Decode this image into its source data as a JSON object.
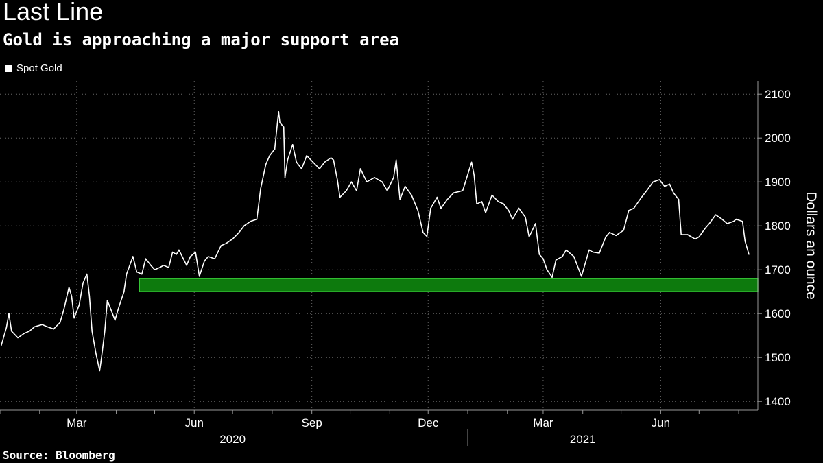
{
  "header": {
    "title": "Last Line",
    "subtitle": "Gold is approaching a major support area"
  },
  "legend": {
    "label": "Spot Gold",
    "swatch_color": "#ffffff"
  },
  "footer": {
    "source": "Source: Bloomberg"
  },
  "chart_data": {
    "type": "line",
    "title": "Last Line",
    "subtitle": "Gold is approaching a major support area",
    "ylabel": "Dollars an ounce",
    "ylim": [
      1380,
      2130
    ],
    "yticks": [
      1400,
      1500,
      1600,
      1700,
      1800,
      1900,
      2000,
      2100
    ],
    "xlim": [
      "2020-01-01",
      "2021-08-16"
    ],
    "x_tick_labels": [
      {
        "label": "Mar",
        "date": "2020-03-01"
      },
      {
        "label": "Jun",
        "date": "2020-06-01"
      },
      {
        "label": "Sep",
        "date": "2020-09-01"
      },
      {
        "label": "Dec",
        "date": "2020-12-01"
      },
      {
        "label": "Mar",
        "date": "2021-03-01"
      },
      {
        "label": "Jun",
        "date": "2021-06-01"
      }
    ],
    "year_labels": [
      {
        "label": "2020",
        "date": "2020-07-01"
      },
      {
        "label": "2021",
        "date": "2021-04-01"
      }
    ],
    "grid": true,
    "legend_position": "top-left",
    "series_color": "#ffffff",
    "series": [
      {
        "name": "Spot Gold",
        "points": [
          [
            "2020-01-02",
            1528
          ],
          [
            "2020-01-06",
            1568
          ],
          [
            "2020-01-08",
            1600
          ],
          [
            "2020-01-10",
            1560
          ],
          [
            "2020-01-15",
            1545
          ],
          [
            "2020-01-20",
            1555
          ],
          [
            "2020-01-24",
            1560
          ],
          [
            "2020-01-28",
            1570
          ],
          [
            "2020-02-03",
            1575
          ],
          [
            "2020-02-07",
            1570
          ],
          [
            "2020-02-12",
            1565
          ],
          [
            "2020-02-17",
            1580
          ],
          [
            "2020-02-20",
            1610
          ],
          [
            "2020-02-24",
            1660
          ],
          [
            "2020-02-26",
            1640
          ],
          [
            "2020-02-28",
            1590
          ],
          [
            "2020-03-03",
            1620
          ],
          [
            "2020-03-06",
            1670
          ],
          [
            "2020-03-09",
            1690
          ],
          [
            "2020-03-11",
            1640
          ],
          [
            "2020-03-13",
            1560
          ],
          [
            "2020-03-16",
            1510
          ],
          [
            "2020-03-19",
            1470
          ],
          [
            "2020-03-20",
            1490
          ],
          [
            "2020-03-23",
            1560
          ],
          [
            "2020-03-25",
            1630
          ],
          [
            "2020-03-27",
            1615
          ],
          [
            "2020-03-31",
            1585
          ],
          [
            "2020-04-03",
            1615
          ],
          [
            "2020-04-07",
            1650
          ],
          [
            "2020-04-09",
            1690
          ],
          [
            "2020-04-14",
            1730
          ],
          [
            "2020-04-17",
            1695
          ],
          [
            "2020-04-21",
            1690
          ],
          [
            "2020-04-24",
            1725
          ],
          [
            "2020-04-28",
            1710
          ],
          [
            "2020-05-01",
            1700
          ],
          [
            "2020-05-05",
            1705
          ],
          [
            "2020-05-08",
            1710
          ],
          [
            "2020-05-12",
            1705
          ],
          [
            "2020-05-15",
            1740
          ],
          [
            "2020-05-18",
            1735
          ],
          [
            "2020-05-20",
            1745
          ],
          [
            "2020-05-26",
            1710
          ],
          [
            "2020-05-29",
            1730
          ],
          [
            "2020-06-02",
            1740
          ],
          [
            "2020-06-05",
            1685
          ],
          [
            "2020-06-09",
            1720
          ],
          [
            "2020-06-12",
            1730
          ],
          [
            "2020-06-17",
            1725
          ],
          [
            "2020-06-22",
            1755
          ],
          [
            "2020-06-26",
            1760
          ],
          [
            "2020-07-01",
            1770
          ],
          [
            "2020-07-06",
            1785
          ],
          [
            "2020-07-10",
            1800
          ],
          [
            "2020-07-15",
            1810
          ],
          [
            "2020-07-20",
            1815
          ],
          [
            "2020-07-23",
            1885
          ],
          [
            "2020-07-27",
            1940
          ],
          [
            "2020-07-30",
            1960
          ],
          [
            "2020-08-03",
            1975
          ],
          [
            "2020-08-06",
            2060
          ],
          [
            "2020-08-07",
            2035
          ],
          [
            "2020-08-10",
            2025
          ],
          [
            "2020-08-11",
            1910
          ],
          [
            "2020-08-13",
            1950
          ],
          [
            "2020-08-17",
            1985
          ],
          [
            "2020-08-20",
            1945
          ],
          [
            "2020-08-24",
            1930
          ],
          [
            "2020-08-28",
            1960
          ],
          [
            "2020-09-02",
            1945
          ],
          [
            "2020-09-07",
            1930
          ],
          [
            "2020-09-11",
            1945
          ],
          [
            "2020-09-16",
            1955
          ],
          [
            "2020-09-18",
            1950
          ],
          [
            "2020-09-21",
            1905
          ],
          [
            "2020-09-23",
            1865
          ],
          [
            "2020-09-28",
            1880
          ],
          [
            "2020-10-02",
            1900
          ],
          [
            "2020-10-06",
            1880
          ],
          [
            "2020-10-09",
            1930
          ],
          [
            "2020-10-14",
            1900
          ],
          [
            "2020-10-20",
            1910
          ],
          [
            "2020-10-26",
            1900
          ],
          [
            "2020-10-30",
            1880
          ],
          [
            "2020-11-04",
            1910
          ],
          [
            "2020-11-06",
            1950
          ],
          [
            "2020-11-09",
            1860
          ],
          [
            "2020-11-13",
            1890
          ],
          [
            "2020-11-18",
            1870
          ],
          [
            "2020-11-23",
            1835
          ],
          [
            "2020-11-27",
            1785
          ],
          [
            "2020-11-30",
            1776
          ],
          [
            "2020-12-03",
            1840
          ],
          [
            "2020-12-08",
            1865
          ],
          [
            "2020-12-11",
            1840
          ],
          [
            "2020-12-16",
            1860
          ],
          [
            "2020-12-21",
            1875
          ],
          [
            "2020-12-28",
            1880
          ],
          [
            "2021-01-04",
            1945
          ],
          [
            "2021-01-06",
            1915
          ],
          [
            "2021-01-08",
            1850
          ],
          [
            "2021-01-12",
            1855
          ],
          [
            "2021-01-15",
            1830
          ],
          [
            "2021-01-20",
            1870
          ],
          [
            "2021-01-25",
            1855
          ],
          [
            "2021-01-29",
            1850
          ],
          [
            "2021-02-02",
            1835
          ],
          [
            "2021-02-05",
            1815
          ],
          [
            "2021-02-10",
            1840
          ],
          [
            "2021-02-15",
            1820
          ],
          [
            "2021-02-18",
            1775
          ],
          [
            "2021-02-23",
            1805
          ],
          [
            "2021-02-26",
            1735
          ],
          [
            "2021-03-01",
            1725
          ],
          [
            "2021-03-04",
            1700
          ],
          [
            "2021-03-08",
            1683
          ],
          [
            "2021-03-11",
            1722
          ],
          [
            "2021-03-16",
            1730
          ],
          [
            "2021-03-19",
            1745
          ],
          [
            "2021-03-25",
            1730
          ],
          [
            "2021-03-31",
            1685
          ],
          [
            "2021-04-06",
            1745
          ],
          [
            "2021-04-09",
            1740
          ],
          [
            "2021-04-14",
            1738
          ],
          [
            "2021-04-19",
            1775
          ],
          [
            "2021-04-22",
            1785
          ],
          [
            "2021-04-27",
            1778
          ],
          [
            "2021-05-03",
            1790
          ],
          [
            "2021-05-07",
            1835
          ],
          [
            "2021-05-11",
            1840
          ],
          [
            "2021-05-17",
            1865
          ],
          [
            "2021-05-21",
            1880
          ],
          [
            "2021-05-26",
            1900
          ],
          [
            "2021-05-31",
            1905
          ],
          [
            "2021-06-04",
            1890
          ],
          [
            "2021-06-08",
            1895
          ],
          [
            "2021-06-11",
            1875
          ],
          [
            "2021-06-15",
            1860
          ],
          [
            "2021-06-17",
            1780
          ],
          [
            "2021-06-22",
            1780
          ],
          [
            "2021-06-28",
            1770
          ],
          [
            "2021-07-01",
            1775
          ],
          [
            "2021-07-06",
            1795
          ],
          [
            "2021-07-09",
            1805
          ],
          [
            "2021-07-14",
            1825
          ],
          [
            "2021-07-19",
            1815
          ],
          [
            "2021-07-23",
            1805
          ],
          [
            "2021-07-28",
            1810
          ],
          [
            "2021-07-30",
            1815
          ],
          [
            "2021-08-04",
            1810
          ],
          [
            "2021-08-06",
            1765
          ],
          [
            "2021-08-09",
            1735
          ]
        ]
      }
    ],
    "annotations": [
      {
        "type": "band",
        "from_date": "2020-04-19",
        "to_date": "2021-08-16",
        "y_low": 1650,
        "y_high": 1680,
        "color": "#0d7a0d",
        "edge_color": "#3ed13e"
      }
    ]
  }
}
